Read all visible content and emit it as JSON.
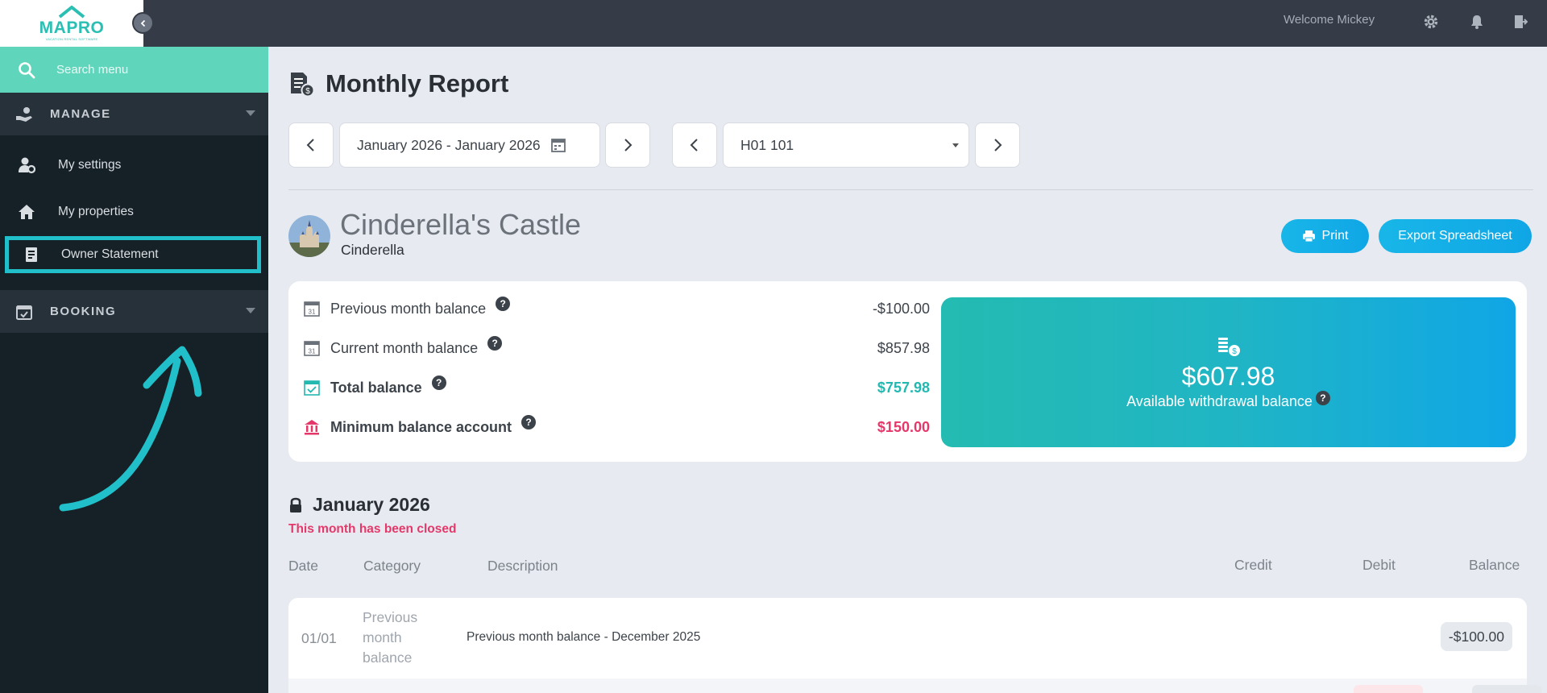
{
  "app": {
    "logo_text": "MAPRO",
    "logo_subtitle": "VACATION RENTAL SOFTWARE",
    "welcome": "Welcome Mickey",
    "top_icons": [
      "gear-icon",
      "bell-icon",
      "logout-icon"
    ]
  },
  "sidebar": {
    "search_placeholder": "Search menu",
    "sections": [
      {
        "label": "MANAGE",
        "icon": "hand-money-icon"
      },
      {
        "label": "BOOKING",
        "icon": "calendar-check-icon"
      }
    ],
    "items": [
      {
        "label": "My settings",
        "icon": "user-gear-icon"
      },
      {
        "label": "My properties",
        "icon": "home-icon"
      },
      {
        "label": "Owner Statement",
        "icon": "document-icon",
        "highlighted": true
      }
    ],
    "highlight_color": "#21bfc9"
  },
  "page": {
    "title": "Monthly Report",
    "date_range": "January 2026 - January 2026",
    "unit_select": "H01 101"
  },
  "property": {
    "name": "Cinderella's Castle",
    "owner": "Cinderella",
    "print_label": "Print",
    "export_label": "Export Spreadsheet"
  },
  "balances": {
    "previous_label": "Previous month balance",
    "previous_value": "-$100.00",
    "current_label": "Current month balance",
    "current_value": "$857.98",
    "total_label": "Total balance",
    "total_value": "$757.98",
    "minimum_label": "Minimum balance account",
    "minimum_value": "$150.00",
    "withdrawal_amount": "$607.98",
    "withdrawal_label": "Available withdrawal balance",
    "help_glyph": "?"
  },
  "month": {
    "title": "January 2026",
    "status": "This month has been closed"
  },
  "table": {
    "headers": {
      "date": "Date",
      "category": "Category",
      "description": "Description",
      "credit": "Credit",
      "debit": "Debit",
      "balance": "Balance"
    },
    "rows": [
      {
        "date": "01/01",
        "category": "Previous month balance",
        "description": "Previous month balance - December 2025",
        "credit": "",
        "debit": "",
        "balance": "-$100.00"
      }
    ]
  },
  "colors": {
    "accent_teal": "#5fd6bb",
    "brand_blue": "#10a6e6",
    "pink": "#e5386a"
  }
}
